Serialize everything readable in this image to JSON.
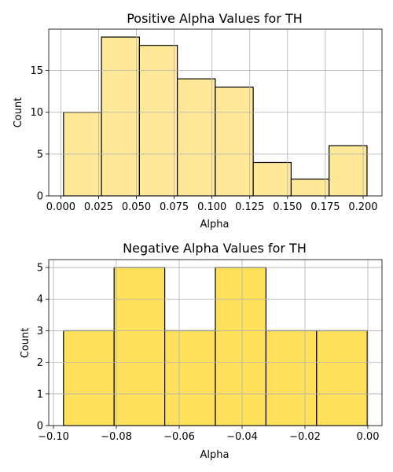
{
  "chart_data": [
    {
      "type": "bar",
      "subtype": "histogram",
      "title": "Positive Alpha Values for TH",
      "xlabel": "Alpha",
      "ylabel": "Count",
      "bin_edges": [
        0.0018,
        0.0269,
        0.052,
        0.0771,
        0.1022,
        0.1273,
        0.1524,
        0.1775,
        0.2026
      ],
      "values": [
        10,
        19,
        18,
        14,
        13,
        4,
        2,
        6
      ],
      "xlim": [
        -0.008,
        0.2125
      ],
      "ylim": [
        0,
        19.95
      ],
      "xticks": [
        0.0,
        0.025,
        0.05,
        0.075,
        0.1,
        0.125,
        0.15,
        0.175,
        0.2
      ],
      "xtick_labels": [
        "0.000",
        "0.025",
        "0.050",
        "0.075",
        "0.100",
        "0.125",
        "0.150",
        "0.175",
        "0.200"
      ],
      "yticks": [
        0,
        5,
        10,
        15
      ],
      "ytick_labels": [
        "0",
        "5",
        "10",
        "15"
      ],
      "grid": true,
      "fill_color": "#ffe998",
      "edge_color": "#000000"
    },
    {
      "type": "bar",
      "subtype": "histogram",
      "title": "Negative Alpha Values for TH",
      "xlabel": "Alpha",
      "ylabel": "Count",
      "bin_edges": [
        -0.0968,
        -0.0807,
        -0.0646,
        -0.0485,
        -0.0324,
        -0.0163,
        -0.0002
      ],
      "values": [
        3,
        5,
        3,
        5,
        3,
        3
      ],
      "xlim": [
        -0.1015,
        0.0045
      ],
      "ylim": [
        0,
        5.25
      ],
      "xticks": [
        -0.1,
        -0.08,
        -0.06,
        -0.04,
        -0.02,
        0.0
      ],
      "xtick_labels": [
        "−0.10",
        "−0.08",
        "−0.06",
        "−0.04",
        "−0.02",
        "0.00"
      ],
      "yticks": [
        0,
        1,
        2,
        3,
        4,
        5
      ],
      "ytick_labels": [
        "0",
        "1",
        "2",
        "3",
        "4",
        "5"
      ],
      "grid": true,
      "fill_color": "#ffe05a",
      "edge_color": "#000000"
    }
  ]
}
